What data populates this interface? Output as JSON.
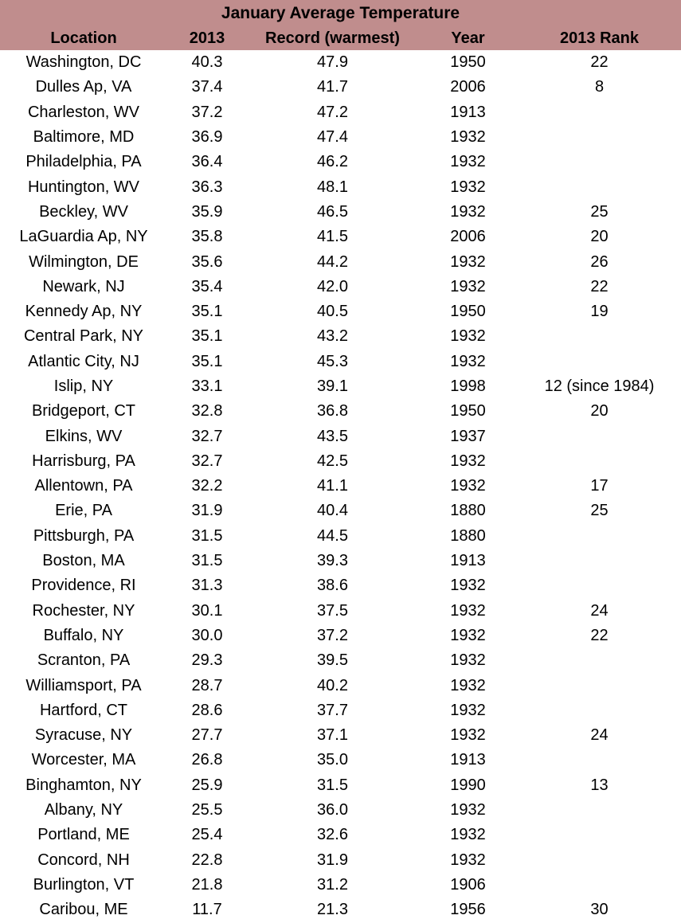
{
  "header_bg": "#C08D8D",
  "text_color": "#000000",
  "chart_data": {
    "type": "table",
    "title": "January Average Temperature",
    "columns": [
      "Location",
      "2013",
      "Record (warmest)",
      "Year",
      "2013 Rank"
    ],
    "rows": [
      [
        "Washington, DC",
        "40.3",
        "47.9",
        "1950",
        "22"
      ],
      [
        "Dulles Ap, VA",
        "37.4",
        "41.7",
        "2006",
        "8"
      ],
      [
        "Charleston, WV",
        "37.2",
        "47.2",
        "1913",
        ""
      ],
      [
        "Baltimore, MD",
        "36.9",
        "47.4",
        "1932",
        ""
      ],
      [
        "Philadelphia, PA",
        "36.4",
        "46.2",
        "1932",
        ""
      ],
      [
        "Huntington, WV",
        "36.3",
        "48.1",
        "1932",
        ""
      ],
      [
        "Beckley, WV",
        "35.9",
        "46.5",
        "1932",
        "25"
      ],
      [
        "LaGuardia Ap, NY",
        "35.8",
        "41.5",
        "2006",
        "20"
      ],
      [
        "Wilmington, DE",
        "35.6",
        "44.2",
        "1932",
        "26"
      ],
      [
        "Newark, NJ",
        "35.4",
        "42.0",
        "1932",
        "22"
      ],
      [
        "Kennedy Ap, NY",
        "35.1",
        "40.5",
        "1950",
        "19"
      ],
      [
        "Central Park, NY",
        "35.1",
        "43.2",
        "1932",
        ""
      ],
      [
        "Atlantic City, NJ",
        "35.1",
        "45.3",
        "1932",
        ""
      ],
      [
        "Islip, NY",
        "33.1",
        "39.1",
        "1998",
        "12 (since 1984)"
      ],
      [
        "Bridgeport, CT",
        "32.8",
        "36.8",
        "1950",
        "20"
      ],
      [
        "Elkins, WV",
        "32.7",
        "43.5",
        "1937",
        ""
      ],
      [
        "Harrisburg, PA",
        "32.7",
        "42.5",
        "1932",
        ""
      ],
      [
        "Allentown, PA",
        "32.2",
        "41.1",
        "1932",
        "17"
      ],
      [
        "Erie, PA",
        "31.9",
        "40.4",
        "1880",
        "25"
      ],
      [
        "Pittsburgh, PA",
        "31.5",
        "44.5",
        "1880",
        ""
      ],
      [
        "Boston, MA",
        "31.5",
        "39.3",
        "1913",
        ""
      ],
      [
        "Providence, RI",
        "31.3",
        "38.6",
        "1932",
        ""
      ],
      [
        "Rochester, NY",
        "30.1",
        "37.5",
        "1932",
        "24"
      ],
      [
        "Buffalo, NY",
        "30.0",
        "37.2",
        "1932",
        "22"
      ],
      [
        "Scranton, PA",
        "29.3",
        "39.5",
        "1932",
        ""
      ],
      [
        "Williamsport, PA",
        "28.7",
        "40.2",
        "1932",
        ""
      ],
      [
        "Hartford, CT",
        "28.6",
        "37.7",
        "1932",
        ""
      ],
      [
        "Syracuse, NY",
        "27.7",
        "37.1",
        "1932",
        "24"
      ],
      [
        "Worcester, MA",
        "26.8",
        "35.0",
        "1913",
        ""
      ],
      [
        "Binghamton, NY",
        "25.9",
        "31.5",
        "1990",
        "13"
      ],
      [
        "Albany, NY",
        "25.5",
        "36.0",
        "1932",
        ""
      ],
      [
        "Portland, ME",
        "25.4",
        "32.6",
        "1932",
        ""
      ],
      [
        "Concord, NH",
        "22.8",
        "31.9",
        "1932",
        ""
      ],
      [
        "Burlington, VT",
        "21.8",
        "31.2",
        "1906",
        ""
      ],
      [
        "Caribou, ME",
        "11.7",
        "21.3",
        "1956",
        "30"
      ]
    ]
  }
}
